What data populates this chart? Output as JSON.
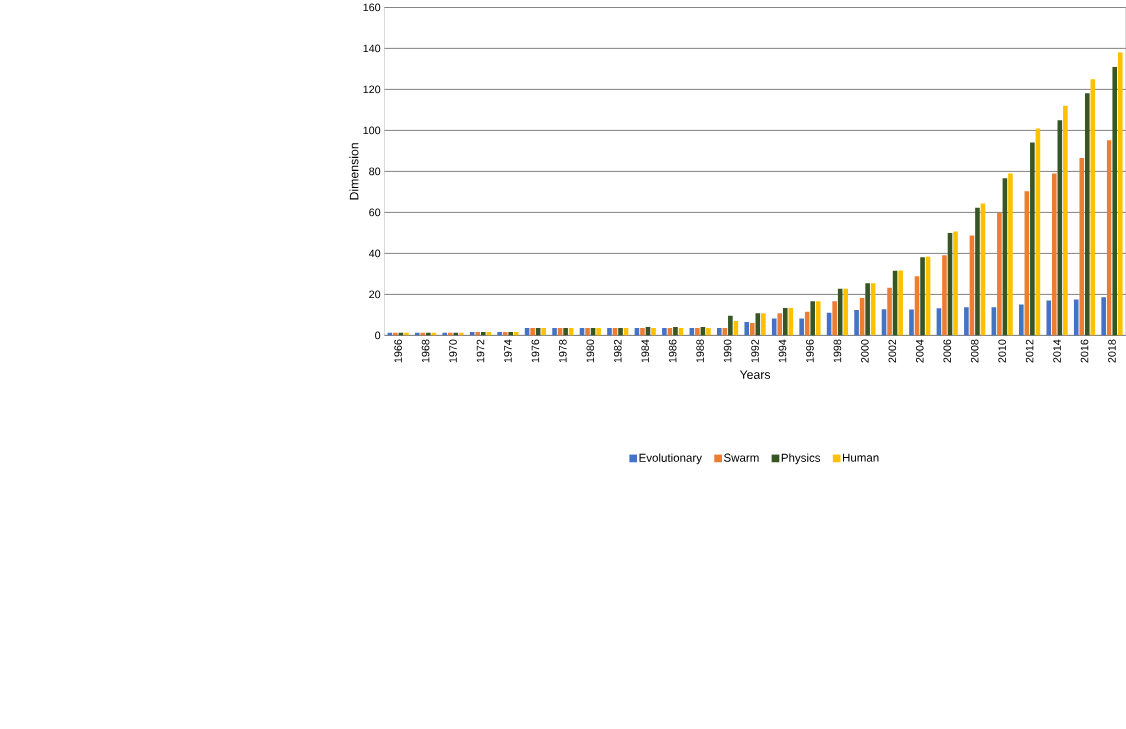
{
  "chart_data": {
    "type": "bar",
    "xlabel": "Years",
    "ylabel": "Dimension",
    "categories": [
      "1966",
      "1968",
      "1970",
      "1972",
      "1974",
      "1976",
      "1978",
      "1980",
      "1982",
      "1984",
      "1986",
      "1988",
      "1990",
      "1992",
      "1994",
      "1996",
      "1998",
      "2000",
      "2002",
      "2004",
      "2006",
      "2008",
      "2010",
      "2012",
      "2014",
      "2016",
      "2018"
    ],
    "series": [
      {
        "name": "Evolutionary",
        "color": "#4472c4",
        "values": [
          1.3,
          1.3,
          1.3,
          1.7,
          1.7,
          3.6,
          3.6,
          3.6,
          3.6,
          3.6,
          3.6,
          3.6,
          3.6,
          6.5,
          8.3,
          8.3,
          11.1,
          12.4,
          12.7,
          12.6,
          13.2,
          13.7,
          13.7,
          15.1,
          17,
          17.5,
          18.6
        ]
      },
      {
        "name": "Swarm",
        "color": "#ed7d31",
        "values": [
          1.3,
          1.3,
          1.3,
          1.7,
          1.7,
          3.6,
          3.6,
          3.6,
          3.6,
          3.6,
          3.6,
          3.6,
          3.6,
          6.1,
          10.8,
          11.5,
          16.6,
          18.3,
          23.3,
          28.8,
          39.1,
          48.7,
          59.7,
          70.3,
          79,
          86.5,
          95.2
        ]
      },
      {
        "name": "Physics",
        "color": "#375623",
        "values": [
          1.3,
          1.3,
          1.3,
          1.7,
          1.7,
          3.6,
          3.6,
          3.6,
          3.6,
          4.1,
          4.1,
          4.1,
          9.6,
          10.8,
          13.4,
          16.6,
          22.7,
          25.4,
          31.5,
          38.1,
          49.9,
          62.3,
          76.7,
          94.1,
          105,
          118.1,
          131
        ]
      },
      {
        "name": "Human",
        "color": "#ffc000",
        "values": [
          1.3,
          1.3,
          1.3,
          1.7,
          1.7,
          3.6,
          3.6,
          3.6,
          3.6,
          3.6,
          3.6,
          3.6,
          7.0,
          10.8,
          13.4,
          16.6,
          22.7,
          25.4,
          31.7,
          38.4,
          50.7,
          64.3,
          79,
          100.9,
          112,
          125,
          138.1
        ]
      }
    ],
    "ylim": [
      0,
      160
    ],
    "yticks": [
      0,
      20,
      40,
      60,
      80,
      100,
      120,
      140,
      160
    ],
    "grid": "y",
    "legend": "bottom"
  }
}
